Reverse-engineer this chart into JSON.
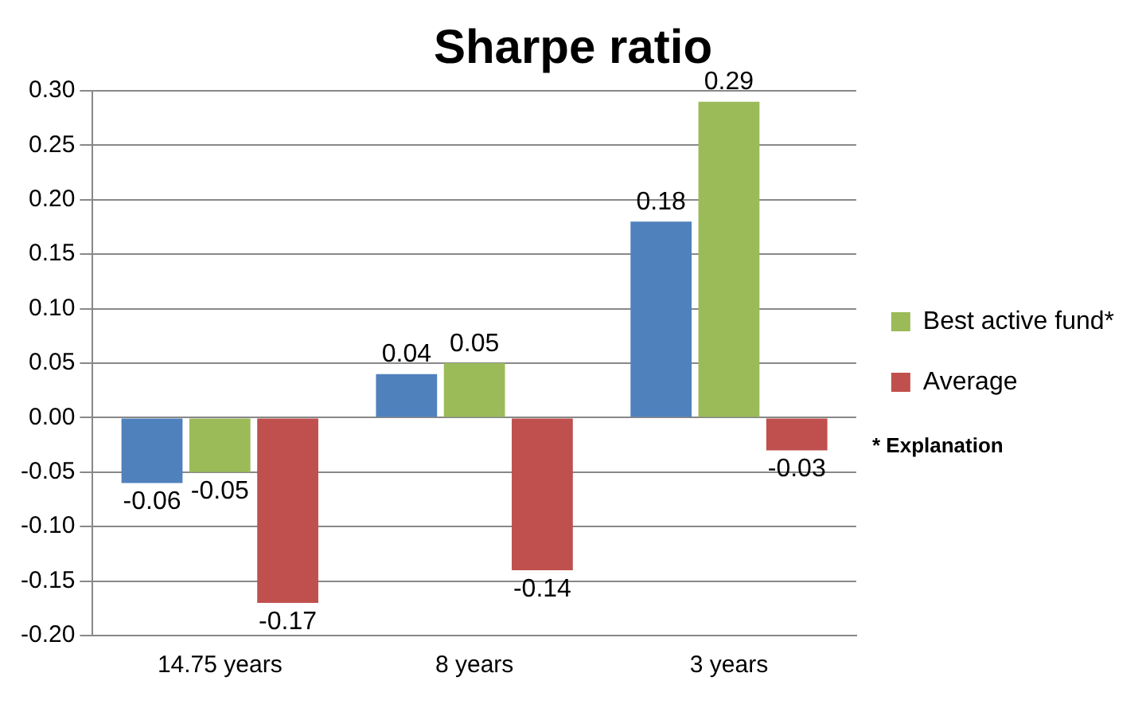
{
  "chart_data": {
    "type": "bar",
    "title": "Sharpe ratio",
    "categories": [
      "14.75 years",
      "8 years",
      "3 years"
    ],
    "series": [
      {
        "color": "#4f81bd",
        "values": [
          -0.06,
          0.04,
          0.18
        ]
      },
      {
        "name": "Best active fund*",
        "color": "#9bbb59",
        "values": [
          -0.05,
          0.05,
          0.29
        ]
      },
      {
        "name": "Average",
        "color": "#c0504d",
        "values": [
          -0.17,
          -0.14,
          -0.03
        ]
      }
    ],
    "ylim": [
      -0.2,
      0.3
    ],
    "yticks": [
      {
        "value": -0.2,
        "label": "-0.20"
      },
      {
        "value": -0.15,
        "label": "-0.15"
      },
      {
        "value": -0.1,
        "label": "-0.10"
      },
      {
        "value": -0.05,
        "label": "-0.05"
      },
      {
        "value": 0,
        "label": "0.00"
      },
      {
        "value": 0.05,
        "label": "0.05"
      },
      {
        "value": 0.1,
        "label": "0.10"
      },
      {
        "value": 0.15,
        "label": "0.15"
      },
      {
        "value": 0.2,
        "label": "0.20"
      },
      {
        "value": 0.25,
        "label": "0.25"
      },
      {
        "value": 0.3,
        "label": "0.30"
      }
    ],
    "grid": "y",
    "legend": "right",
    "data_labels": true,
    "annotations": [
      "* Explanation"
    ]
  }
}
